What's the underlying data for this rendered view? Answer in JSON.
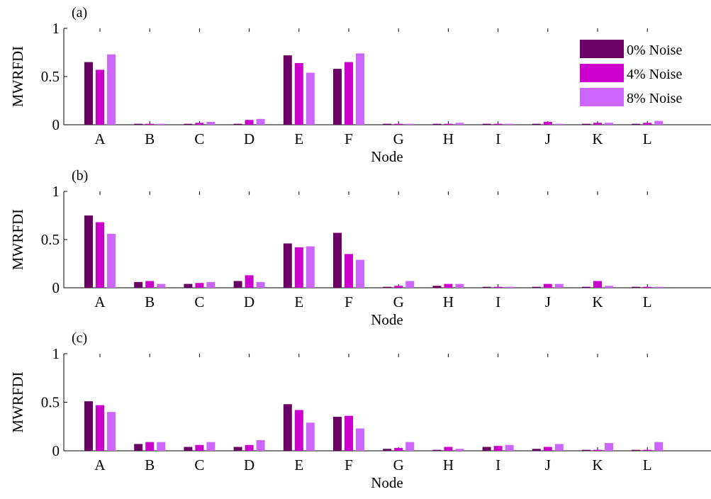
{
  "colors": {
    "series": [
      "#6a0064",
      "#cc00cc",
      "#cc66ff"
    ],
    "axis": "#000000",
    "background": "#ffffff"
  },
  "legend": {
    "placement": "top-right",
    "panel": 0,
    "labels": [
      "0% Noise",
      "4% Noise",
      "8% Noise"
    ]
  },
  "chart_data": [
    {
      "type": "bar",
      "title": "(a)",
      "xlabel": "Node",
      "ylabel": "MWRFDI",
      "ylim": [
        0,
        1
      ],
      "yticks": [
        0,
        0.5,
        1
      ],
      "ytick_labels": [
        "0",
        "0.5",
        "1"
      ],
      "categories": [
        "A",
        "B",
        "C",
        "D",
        "E",
        "F",
        "G",
        "H",
        "I",
        "J",
        "K",
        "L"
      ],
      "series": [
        {
          "name": "0% Noise",
          "values": [
            0.65,
            0.01,
            0.01,
            0.01,
            0.72,
            0.58,
            0.01,
            0.01,
            0.01,
            0.01,
            0.01,
            0.01
          ]
        },
        {
          "name": "4% Noise",
          "values": [
            0.57,
            0.01,
            0.02,
            0.05,
            0.64,
            0.65,
            0.01,
            0.01,
            0.01,
            0.03,
            0.02,
            0.02
          ]
        },
        {
          "name": "8% Noise",
          "values": [
            0.73,
            0.01,
            0.03,
            0.06,
            0.54,
            0.74,
            0.01,
            0.02,
            0.01,
            0.01,
            0.02,
            0.04
          ]
        }
      ]
    },
    {
      "type": "bar",
      "title": "(b)",
      "xlabel": "Node",
      "ylabel": "MWRFDI",
      "ylim": [
        0,
        1
      ],
      "yticks": [
        0,
        0.5,
        1
      ],
      "ytick_labels": [
        "0",
        "0.5",
        "1"
      ],
      "categories": [
        "A",
        "B",
        "C",
        "D",
        "E",
        "F",
        "G",
        "H",
        "I",
        "J",
        "K",
        "L"
      ],
      "series": [
        {
          "name": "0% Noise",
          "values": [
            0.75,
            0.06,
            0.04,
            0.07,
            0.46,
            0.57,
            0.01,
            0.02,
            0.01,
            0.01,
            0.01,
            0.01
          ]
        },
        {
          "name": "4% Noise",
          "values": [
            0.68,
            0.07,
            0.05,
            0.13,
            0.42,
            0.35,
            0.02,
            0.04,
            0.01,
            0.04,
            0.07,
            0.01
          ]
        },
        {
          "name": "8% Noise",
          "values": [
            0.56,
            0.04,
            0.06,
            0.06,
            0.43,
            0.29,
            0.07,
            0.04,
            0.01,
            0.04,
            0.02,
            0.01
          ]
        }
      ]
    },
    {
      "type": "bar",
      "title": "(c)",
      "xlabel": "Node",
      "ylabel": "MWRFDI",
      "ylim": [
        0,
        1
      ],
      "yticks": [
        0,
        0.5,
        1
      ],
      "ytick_labels": [
        "0",
        "0.5",
        "1"
      ],
      "categories": [
        "A",
        "B",
        "C",
        "D",
        "E",
        "F",
        "G",
        "H",
        "I",
        "J",
        "K",
        "L"
      ],
      "series": [
        {
          "name": "0% Noise",
          "values": [
            0.51,
            0.07,
            0.04,
            0.04,
            0.48,
            0.35,
            0.02,
            0.01,
            0.04,
            0.02,
            0.01,
            0.01
          ]
        },
        {
          "name": "4% Noise",
          "values": [
            0.47,
            0.09,
            0.06,
            0.06,
            0.42,
            0.36,
            0.03,
            0.04,
            0.05,
            0.04,
            0.01,
            0.01
          ]
        },
        {
          "name": "8% Noise",
          "values": [
            0.4,
            0.09,
            0.09,
            0.11,
            0.29,
            0.23,
            0.09,
            0.02,
            0.06,
            0.07,
            0.08,
            0.09
          ]
        }
      ]
    }
  ]
}
